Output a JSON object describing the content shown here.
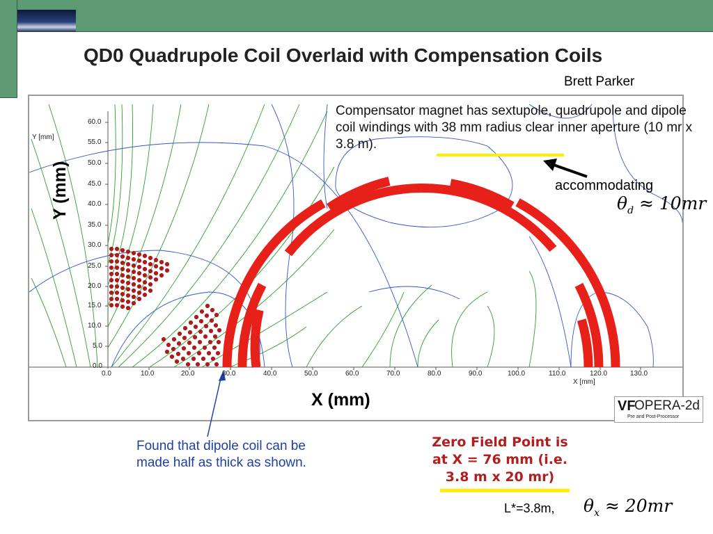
{
  "title": "QD0 Quadrupole Coil Overlaid with Compensation Coils",
  "author": "Brett Parker",
  "annotations": {
    "compensator_note": "Compensator magnet has sextupole, quadrupole and dipole coil windings with 38 mm radius clear inner aperture (10 mr x 3.8 m).",
    "accommodating": "accommodating",
    "theta_d": "θd ≈ 10mr",
    "found_dipole": "Found that dipole coil can be made half as thick as shown.",
    "zero_field": "Zero Field Point is at X = 76 mm (i.e. 3.8 m x 20 mr)",
    "lstar": "L*=3.8m,",
    "theta_x": "θx ≈ 20mr"
  },
  "math": {
    "theta1": "θ",
    "sub1": "d",
    "rel1": " ≈ 10mr",
    "theta2": "θ",
    "sub2": "x",
    "rel2": " ≈ 20mr"
  },
  "plot": {
    "y_axis_title": "Y (mm)",
    "x_axis_title": "X (mm)",
    "y_unit_label": "Y [mm]",
    "x_unit_label": "X [mm]",
    "y_ticks": [
      "60.0",
      "55.0",
      "50.0",
      "45.0",
      "40.0",
      "35.0",
      "30.0",
      "25.0",
      "20.0",
      "15.0",
      "10.0",
      "5.0",
      "0.0"
    ],
    "x_ticks": [
      "0.0",
      "10.0",
      "20.0",
      "30.0",
      "40.0",
      "50.0",
      "60.0",
      "70.0",
      "80.0",
      "90.0",
      "100.0",
      "110.0",
      "120.0",
      "130.0"
    ]
  },
  "software": {
    "logo": "VF",
    "name": "OPERA-2d",
    "subtitle": "Pre and Post-Processor"
  },
  "colors": {
    "coil": "#e8201a",
    "field_green": "#2aa02a",
    "field_blue": "#3355cc",
    "highlight": "#ffee00",
    "zero_text": "#b21e1e",
    "arrow_blue": "#1f3fa6"
  }
}
